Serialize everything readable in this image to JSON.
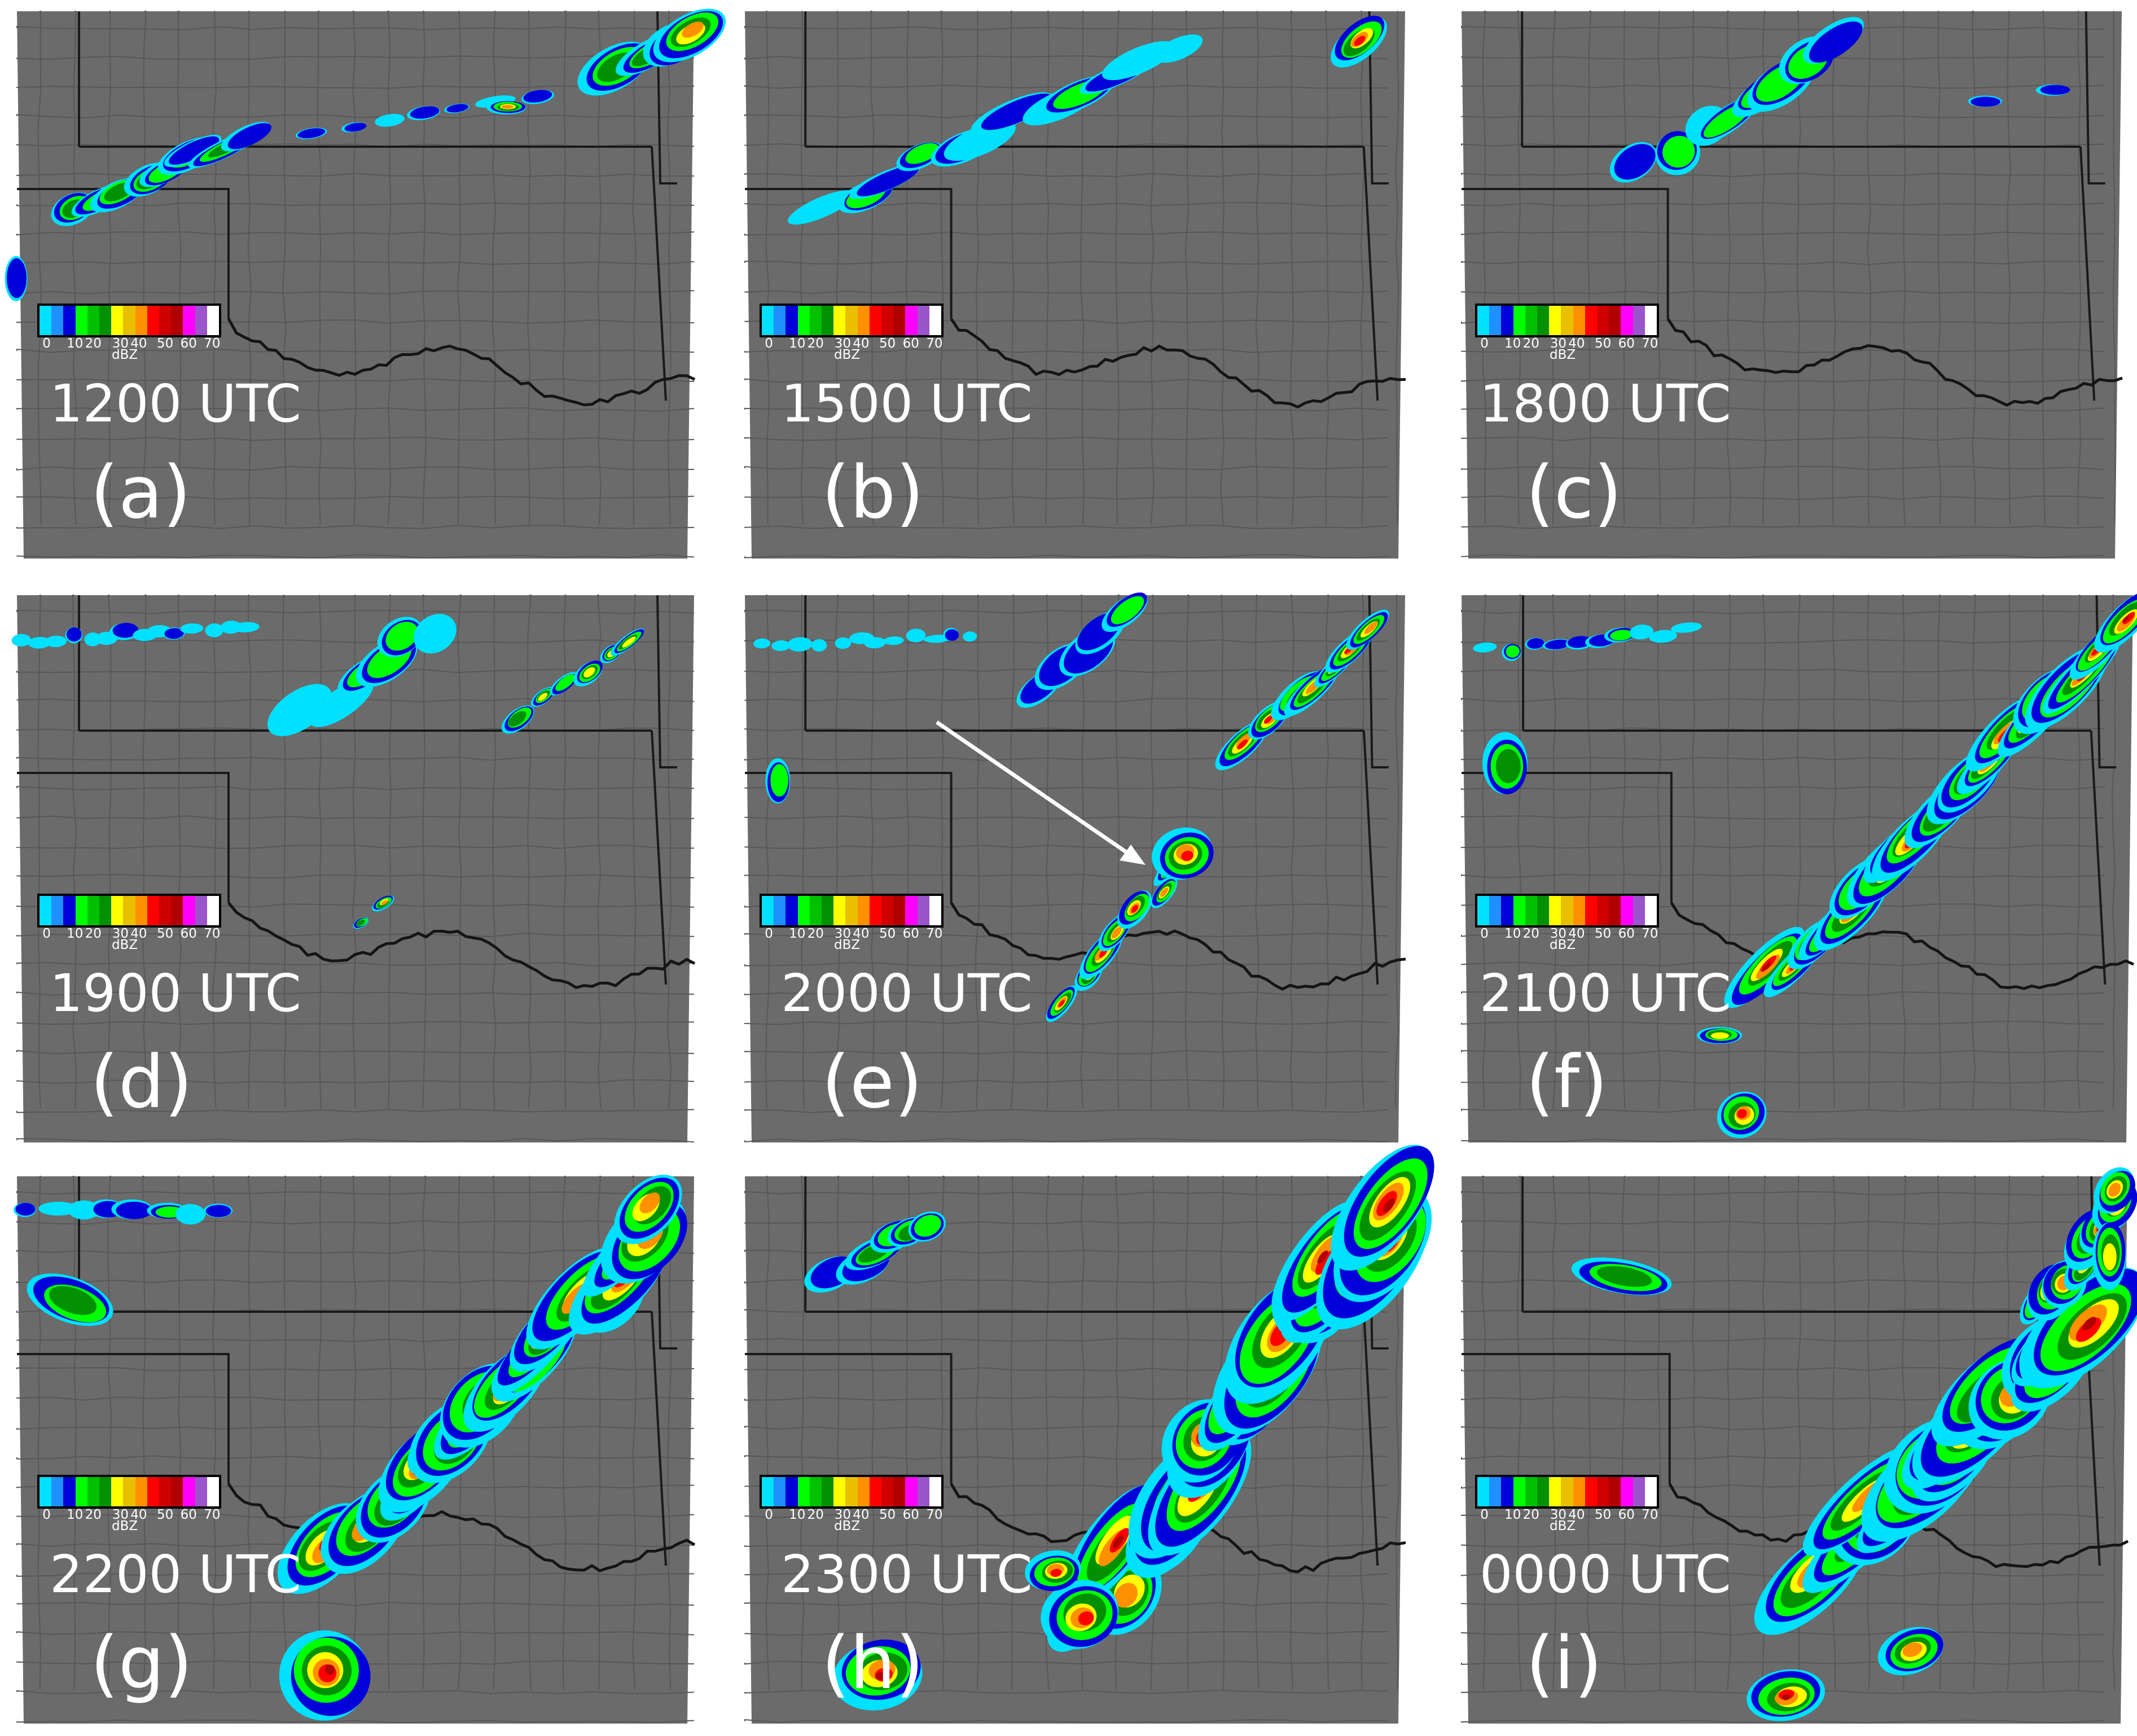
{
  "colors": {
    "background": "#6b6b6b",
    "county_lines": "#585858",
    "state_lines": "#1a1a1a",
    "river": "#151515",
    "label_text": "#ffffff"
  },
  "colorbar": {
    "unit": "dBZ",
    "ticks": [
      "0",
      "10",
      "20",
      "30",
      "40",
      "50",
      "60",
      "70"
    ],
    "colors": [
      "#00e0ff",
      "#1e90ff",
      "#0000d8",
      "#00ff00",
      "#00c000",
      "#009000",
      "#ffff00",
      "#e8c000",
      "#ff9000",
      "#ff0000",
      "#d00000",
      "#b00000",
      "#ff00ff",
      "#9955c9",
      "#ffffff"
    ]
  },
  "panels": [
    {
      "letter": "(a)",
      "time": "1200 UTC"
    },
    {
      "letter": "(b)",
      "time": "1500 UTC"
    },
    {
      "letter": "(c)",
      "time": "1800 UTC"
    },
    {
      "letter": "(d)",
      "time": "1900 UTC"
    },
    {
      "letter": "(e)",
      "time": "2000 UTC"
    },
    {
      "letter": "(f)",
      "time": "2100 UTC"
    },
    {
      "letter": "(g)",
      "time": "2200 UTC"
    },
    {
      "letter": "(h)",
      "time": "2300 UTC"
    },
    {
      "letter": "(i)",
      "time": "0000 UTC"
    }
  ]
}
